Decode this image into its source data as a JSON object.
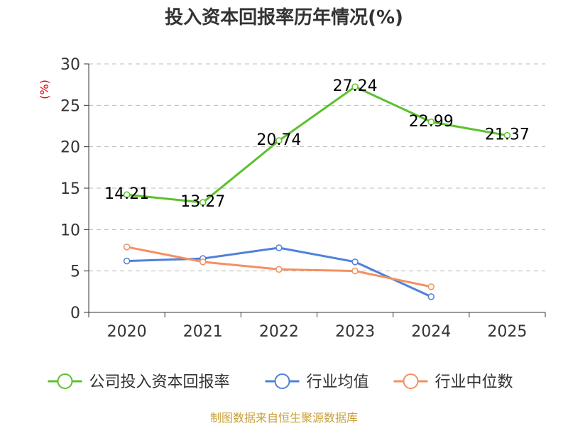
{
  "chart_data": {
    "type": "line",
    "title": "投入资本回报率历年情况(%)",
    "ylabel": "(%)",
    "xlabel": "",
    "categories": [
      "2020",
      "2021",
      "2022",
      "2023",
      "2024",
      "2025"
    ],
    "ylim": [
      0,
      30
    ],
    "yticks": [
      0,
      5,
      10,
      15,
      20,
      25,
      30
    ],
    "grid": true,
    "legend_position": "bottom",
    "series": [
      {
        "name": "公司投入资本回报率",
        "color": "#5cc12d",
        "values": [
          14.21,
          13.27,
          20.74,
          27.24,
          22.99,
          21.37
        ],
        "labels": [
          "14.21",
          "13.27",
          "20.74",
          "27.24",
          "22.99",
          "21.37"
        ]
      },
      {
        "name": "行业均值",
        "color": "#4f81d9",
        "values": [
          6.2,
          6.5,
          7.8,
          6.1,
          1.9,
          null
        ]
      },
      {
        "name": "行业中位数",
        "color": "#f49060",
        "values": [
          7.9,
          6.1,
          5.2,
          5.0,
          3.1,
          null
        ]
      }
    ],
    "source": "制图数据来自恒生聚源数据库"
  }
}
